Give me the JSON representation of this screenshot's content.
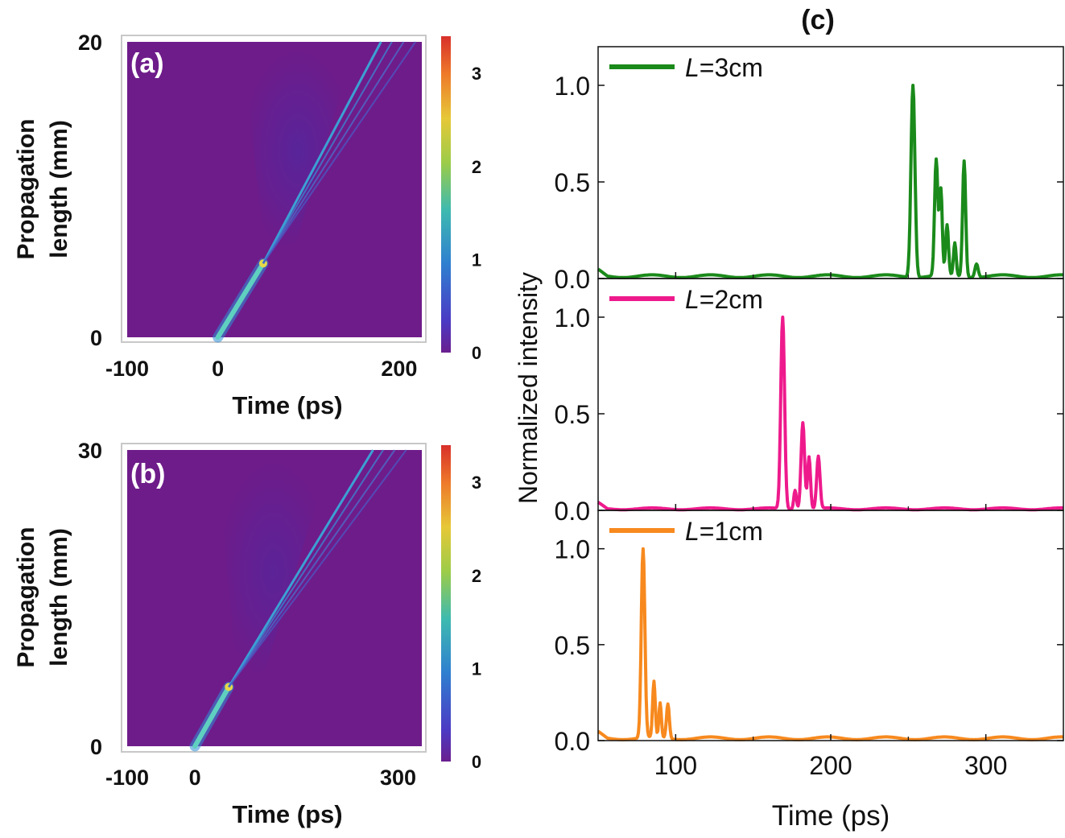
{
  "chart_data": [
    {
      "id": "a",
      "type": "heatmap",
      "panel_label": "(a)",
      "xlabel": "Time (ps)",
      "ylabel_line1": "Propagation",
      "ylabel_line2": "length (mm)",
      "xticks": [
        "-100",
        "0",
        "200"
      ],
      "xtick_values": [
        -100,
        0,
        200
      ],
      "yticks": [
        "0",
        "20"
      ],
      "yticks_values": [
        0,
        20
      ],
      "xlim": [
        -100,
        225
      ],
      "ylim": [
        0,
        20
      ],
      "colorbar_ticks": [
        "0",
        "1",
        "2",
        "3"
      ],
      "colorbar_values": [
        0,
        1,
        2,
        3
      ],
      "colorbar_range": [
        0,
        3.4
      ],
      "soliton_fission_point": {
        "t": 50,
        "z": 5
      },
      "branch_end_times": [
        180,
        192,
        205,
        218
      ]
    },
    {
      "id": "b",
      "type": "heatmap",
      "panel_label": "(b)",
      "xlabel": "Time (ps)",
      "ylabel_line1": "Propagation",
      "ylabel_line2": "length (mm)",
      "xticks": [
        "-100",
        "0",
        "300"
      ],
      "xtick_values": [
        -100,
        0,
        300
      ],
      "yticks": [
        "0",
        "30"
      ],
      "yticks_values": [
        0,
        30
      ],
      "xlim": [
        -100,
        335
      ],
      "ylim": [
        0,
        30
      ],
      "colorbar_ticks": [
        "0",
        "1",
        "2",
        "3"
      ],
      "colorbar_values": [
        0,
        1,
        2,
        3
      ],
      "colorbar_range": [
        0,
        3.4
      ],
      "soliton_fission_point": {
        "t": 50,
        "z": 6
      },
      "branch_end_times": [
        263,
        278,
        295,
        312
      ]
    },
    {
      "id": "c",
      "type": "line",
      "title": "(c)",
      "xlabel": "Time (ps)",
      "ylabel": "Normalized intensity",
      "xlim": [
        50,
        350
      ],
      "ylim": [
        0,
        1.2
      ],
      "xticks": [
        "100",
        "200",
        "300"
      ],
      "xtick_values": [
        100,
        200,
        300
      ],
      "yticks": [
        "0.0",
        "0.5",
        "1.0"
      ],
      "ytick_values": [
        0,
        0.5,
        1.0
      ],
      "series": [
        {
          "name_italic": "L",
          "name_rest": "=3cm",
          "color": "#1a8a1a",
          "baseline": 0.012,
          "peaks": [
            [
              253,
              1.0,
              1.8
            ],
            [
              268,
              0.6,
              1.5
            ],
            [
              271,
              0.44,
              1.3
            ],
            [
              275,
              0.26,
              1.3
            ],
            [
              280,
              0.17,
              1.2
            ],
            [
              286,
              0.6,
              1.4
            ],
            [
              294,
              0.07,
              1.5
            ]
          ]
        },
        {
          "name_italic": "L",
          "name_rest": "=2cm",
          "color": "#ee1a8c",
          "baseline": 0.008,
          "peaks": [
            [
              169,
              1.0,
              1.7
            ],
            [
              182,
              0.45,
              1.6
            ],
            [
              186,
              0.27,
              1.3
            ],
            [
              192,
              0.27,
              1.5
            ],
            [
              177,
              0.1,
              1.2
            ]
          ]
        },
        {
          "name_italic": "L",
          "name_rest": "=1cm",
          "color": "#f7891e",
          "baseline": 0.012,
          "peaks": [
            [
              79,
              1.0,
              1.6
            ],
            [
              86,
              0.29,
              1.2
            ],
            [
              90,
              0.18,
              1.1
            ],
            [
              95,
              0.18,
              1.3
            ]
          ]
        }
      ]
    }
  ]
}
